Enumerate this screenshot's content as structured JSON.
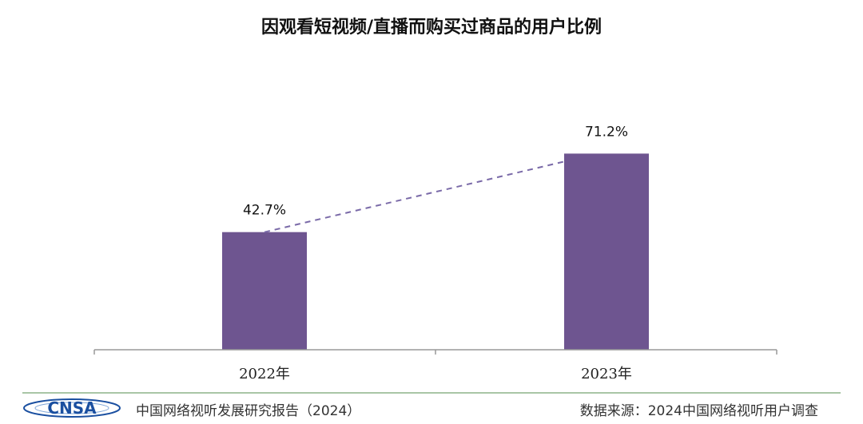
{
  "chart_data": {
    "type": "bar",
    "title": "因观看短视频/直播而购买过商品的用户比例",
    "categories": [
      "2022年",
      "2023年"
    ],
    "values": [
      42.7,
      71.2
    ],
    "data_labels": [
      "42.7%",
      "71.2%"
    ],
    "unit": "%",
    "ylim": [
      0,
      100
    ],
    "grid": false,
    "legend": "none",
    "trend_line": "dashed",
    "bar_color": "#6e5590",
    "trend_color": "#7a6aa8"
  },
  "footer": {
    "logo_text": "CNSA",
    "report": "中国网络视听发展研究报告（2024）",
    "source": "数据来源：2024中国网络视听用户调查"
  },
  "colors": {
    "footer_line": "#a9c6a6",
    "logo_blue": "#1a4fa0"
  }
}
